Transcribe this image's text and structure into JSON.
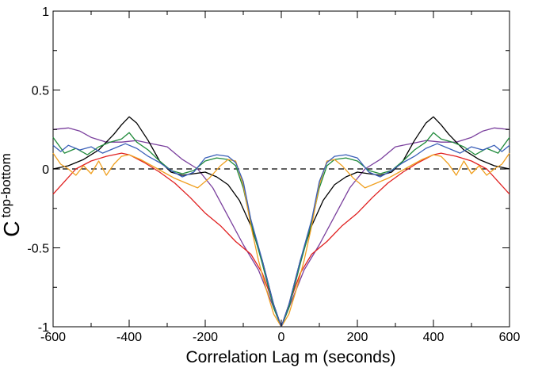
{
  "chart_data": {
    "type": "line",
    "title": "",
    "xlabel": "Correlation Lag m (seconds)",
    "ylabel_main": "C",
    "ylabel_sup": "top-bottom",
    "xlim": [
      -600,
      600
    ],
    "ylim": [
      -1,
      1
    ],
    "x_ticks": [
      -600,
      -400,
      -200,
      0,
      200,
      400,
      600
    ],
    "x_tick_labels": [
      "-600",
      "-400",
      "-200",
      "0",
      "200",
      "400",
      "600"
    ],
    "y_ticks": [
      -1,
      -0.5,
      0,
      0.5,
      1
    ],
    "y_tick_labels": [
      "-1",
      "-0.5",
      "0",
      "0.5",
      "1"
    ],
    "grid": false,
    "reference_line": {
      "y": 0,
      "style": "dashed",
      "color": "#000000"
    },
    "series": [
      {
        "color": "#7a3f9d",
        "x": [
          -600,
          -560,
          -530,
          -500,
          -460,
          -420,
          -380,
          -340,
          -300,
          -260,
          -220,
          -180,
          -140,
          -100,
          -60,
          -30,
          -10,
          0
        ],
        "y": [
          0.25,
          0.26,
          0.24,
          0.2,
          0.17,
          0.17,
          0.18,
          0.16,
          0.14,
          0.06,
          0.0,
          -0.12,
          -0.3,
          -0.48,
          -0.64,
          -0.82,
          -0.94,
          -1.0
        ]
      },
      {
        "color": "#e02020",
        "x": [
          -600,
          -570,
          -540,
          -500,
          -460,
          -420,
          -400,
          -360,
          -320,
          -280,
          -240,
          -200,
          -160,
          -120,
          -80,
          -50,
          -20,
          0
        ],
        "y": [
          -0.16,
          -0.08,
          0.0,
          0.05,
          0.08,
          0.1,
          0.09,
          0.04,
          -0.02,
          -0.09,
          -0.18,
          -0.28,
          -0.36,
          -0.46,
          -0.54,
          -0.66,
          -0.86,
          -1.0
        ]
      },
      {
        "color": "#000000",
        "x": [
          -600,
          -560,
          -520,
          -480,
          -440,
          -420,
          -400,
          -380,
          -350,
          -320,
          -290,
          -260,
          -230,
          -200,
          -170,
          -140,
          -110,
          -80,
          -50,
          -20,
          0
        ],
        "y": [
          0.0,
          0.02,
          0.06,
          0.12,
          0.22,
          0.28,
          0.33,
          0.29,
          0.18,
          0.05,
          -0.02,
          -0.04,
          -0.03,
          -0.02,
          -0.05,
          -0.1,
          -0.2,
          -0.36,
          -0.58,
          -0.86,
          -1.0
        ]
      },
      {
        "color": "#1f8a3a",
        "x": [
          -600,
          -570,
          -540,
          -510,
          -480,
          -450,
          -420,
          -400,
          -380,
          -350,
          -320,
          -290,
          -260,
          -230,
          -200,
          -170,
          -140,
          -120,
          -100,
          -80,
          -50,
          -20,
          0
        ],
        "y": [
          0.2,
          0.1,
          0.13,
          0.09,
          0.14,
          0.17,
          0.19,
          0.23,
          0.17,
          0.12,
          0.05,
          -0.01,
          -0.03,
          -0.01,
          0.05,
          0.07,
          0.06,
          0.02,
          -0.12,
          -0.34,
          -0.6,
          -0.88,
          -1.0
        ]
      },
      {
        "color": "#f0a020",
        "x": [
          -600,
          -580,
          -560,
          -540,
          -520,
          -500,
          -480,
          -460,
          -440,
          -420,
          -400,
          -370,
          -340,
          -310,
          -280,
          -250,
          -220,
          -190,
          -160,
          -140,
          -120,
          -100,
          -80,
          -60,
          -40,
          -20,
          0
        ],
        "y": [
          0.1,
          0.03,
          0.0,
          -0.04,
          0.02,
          -0.03,
          0.05,
          -0.04,
          0.03,
          0.08,
          0.09,
          0.06,
          0.02,
          -0.02,
          -0.06,
          -0.09,
          -0.12,
          -0.06,
          0.02,
          0.06,
          0.05,
          -0.1,
          -0.36,
          -0.58,
          -0.76,
          -0.92,
          -1.0
        ]
      },
      {
        "color": "#3a5fb8",
        "x": [
          -600,
          -580,
          -560,
          -530,
          -500,
          -470,
          -440,
          -410,
          -380,
          -350,
          -320,
          -290,
          -260,
          -230,
          -200,
          -170,
          -140,
          -120,
          -100,
          -80,
          -50,
          -20,
          0
        ],
        "y": [
          0.15,
          0.11,
          0.15,
          0.12,
          0.14,
          0.1,
          0.13,
          0.16,
          0.13,
          0.08,
          0.04,
          -0.01,
          -0.05,
          -0.02,
          0.07,
          0.09,
          0.08,
          0.04,
          -0.08,
          -0.32,
          -0.58,
          -0.86,
          -1.0
        ]
      }
    ]
  }
}
